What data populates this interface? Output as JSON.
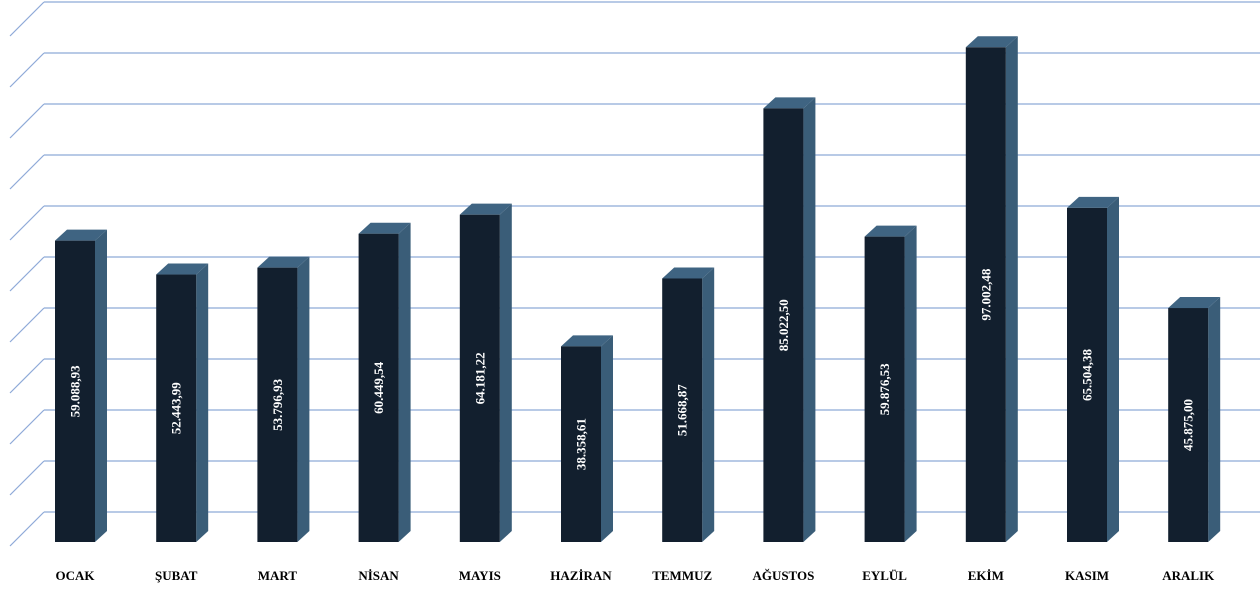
{
  "chart_data": {
    "type": "bar",
    "title": "",
    "xlabel": "",
    "ylabel": "",
    "categories": [
      "OCAK",
      "ŞUBAT",
      "MART",
      "NİSAN",
      "MAYIS",
      "HAZİRAN",
      "TEMMUZ",
      "AĞUSTOS",
      "EYLÜL",
      "EKİM",
      "KASIM",
      "ARALIK"
    ],
    "values": [
      59088.93,
      52443.99,
      53796.93,
      60449.54,
      64181.22,
      38358.61,
      51668.87,
      85022.5,
      59876.53,
      97002.48,
      65504.38,
      45875.0
    ],
    "value_labels": [
      "59.088,93",
      "52.443,99",
      "53.796,93",
      "60.449,54",
      "64.181,22",
      "38.358,61",
      "51.668,87",
      "85.022,50",
      "59.876,53",
      "97.002,48",
      "65.504,38",
      "45.875,00"
    ],
    "ylim": [
      0,
      105000
    ],
    "grid": true,
    "legend": "none",
    "style": "3d-column",
    "colors": {
      "bar_front": "#121f2e",
      "bar_side": "#3a5d78",
      "bar_top": "#3f6482",
      "gridline": "#8eaad8",
      "value_text": "#ffffff",
      "category_text": "#000000"
    }
  }
}
